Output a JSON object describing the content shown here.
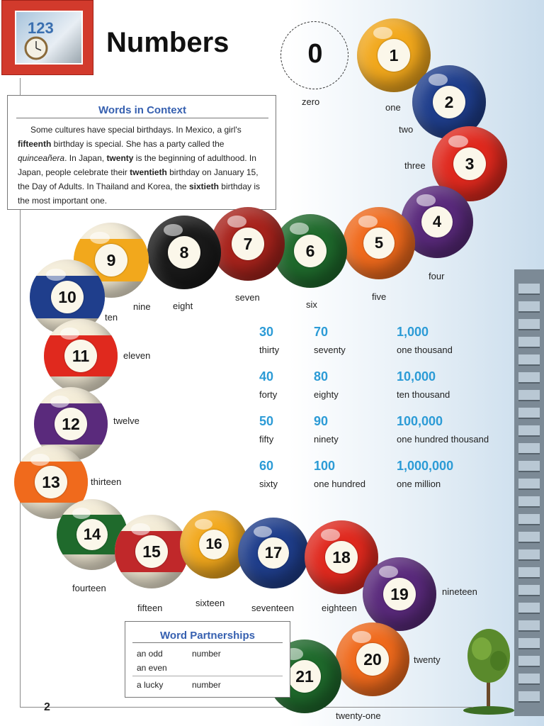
{
  "header": {
    "title": "Numbers",
    "thumbnail_text": "123"
  },
  "context_box": {
    "heading": "Words in Context",
    "segments": [
      {
        "t": "Some cultures have special birthdays. In Mexico, a girl's ",
        "s": "n"
      },
      {
        "t": "fifteenth",
        "s": "b"
      },
      {
        "t": " birthday is special. She has a party called the ",
        "s": "n"
      },
      {
        "t": "quinceañera",
        "s": "i"
      },
      {
        "t": ". In Japan, ",
        "s": "n"
      },
      {
        "t": "twenty",
        "s": "b"
      },
      {
        "t": " is the beginning of adulthood. In Japan, people celebrate their ",
        "s": "n"
      },
      {
        "t": "twentieth",
        "s": "b"
      },
      {
        "t": " birthday on January 15, the Day of Adults. In Thailand and Korea, the ",
        "s": "n"
      },
      {
        "t": "sixtieth",
        "s": "b"
      },
      {
        "t": " birthday is the most important one.",
        "s": "n"
      }
    ]
  },
  "zero": {
    "digit": "0",
    "word": "zero"
  },
  "balls": [
    {
      "n": "1",
      "color": "#f2a81c",
      "striped": false
    },
    {
      "n": "2",
      "color": "#1f3e8c",
      "striped": false
    },
    {
      "n": "3",
      "color": "#e0291e",
      "striped": false
    },
    {
      "n": "4",
      "color": "#5a2a7c",
      "striped": false
    },
    {
      "n": "5",
      "color": "#f06a1c",
      "striped": false
    },
    {
      "n": "6",
      "color": "#1f6a2c",
      "striped": false
    },
    {
      "n": "7",
      "color": "#a8231c",
      "striped": false
    },
    {
      "n": "8",
      "color": "#1a1a1a",
      "striped": false
    },
    {
      "n": "9",
      "color": "#f2a81c",
      "striped": true
    },
    {
      "n": "10",
      "color": "#1f3e8c",
      "striped": true
    },
    {
      "n": "11",
      "color": "#e0291e",
      "striped": true
    },
    {
      "n": "12",
      "color": "#5a2a7c",
      "striped": true
    },
    {
      "n": "13",
      "color": "#f06a1c",
      "striped": true
    },
    {
      "n": "14",
      "color": "#1f6a2c",
      "striped": true
    },
    {
      "n": "15",
      "color": "#c0282a",
      "striped": true
    },
    {
      "n": "16",
      "color": "#f2a81c",
      "striped": false
    },
    {
      "n": "17",
      "color": "#1f3e8c",
      "striped": false
    },
    {
      "n": "18",
      "color": "#e0291e",
      "striped": false
    },
    {
      "n": "19",
      "color": "#5a2a7c",
      "striped": false
    },
    {
      "n": "20",
      "color": "#f06a1c",
      "striped": false
    },
    {
      "n": "21",
      "color": "#1f6a2c",
      "striped": false
    }
  ],
  "words": [
    "one",
    "two",
    "three",
    "four",
    "five",
    "six",
    "seven",
    "eight",
    "nine",
    "ten",
    "eleven",
    "twelve",
    "thirteen",
    "fourteen",
    "fifteen",
    "sixteen",
    "seventeen",
    "eighteen",
    "nineteen",
    "twenty",
    "twenty-one"
  ],
  "big_numbers": [
    {
      "num": "30",
      "word": "thirty"
    },
    {
      "num": "40",
      "word": "forty"
    },
    {
      "num": "50",
      "word": "fifty"
    },
    {
      "num": "60",
      "word": "sixty"
    },
    {
      "num": "70",
      "word": "seventy"
    },
    {
      "num": "80",
      "word": "eighty"
    },
    {
      "num": "90",
      "word": "ninety"
    },
    {
      "num": "100",
      "word": "one hundred"
    },
    {
      "num": "1,000",
      "word": "one thousand"
    },
    {
      "num": "10,000",
      "word": "ten thousand"
    },
    {
      "num": "100,000",
      "word": "one hundred thousand"
    },
    {
      "num": "1,000,000",
      "word": "one million"
    }
  ],
  "partnerships": {
    "heading": "Word Partnerships",
    "rows": [
      {
        "a": "an odd",
        "b": "number"
      },
      {
        "a": "an even",
        "b": ""
      },
      {
        "a": "a lucky",
        "b": "number"
      }
    ]
  },
  "page_number": "2"
}
